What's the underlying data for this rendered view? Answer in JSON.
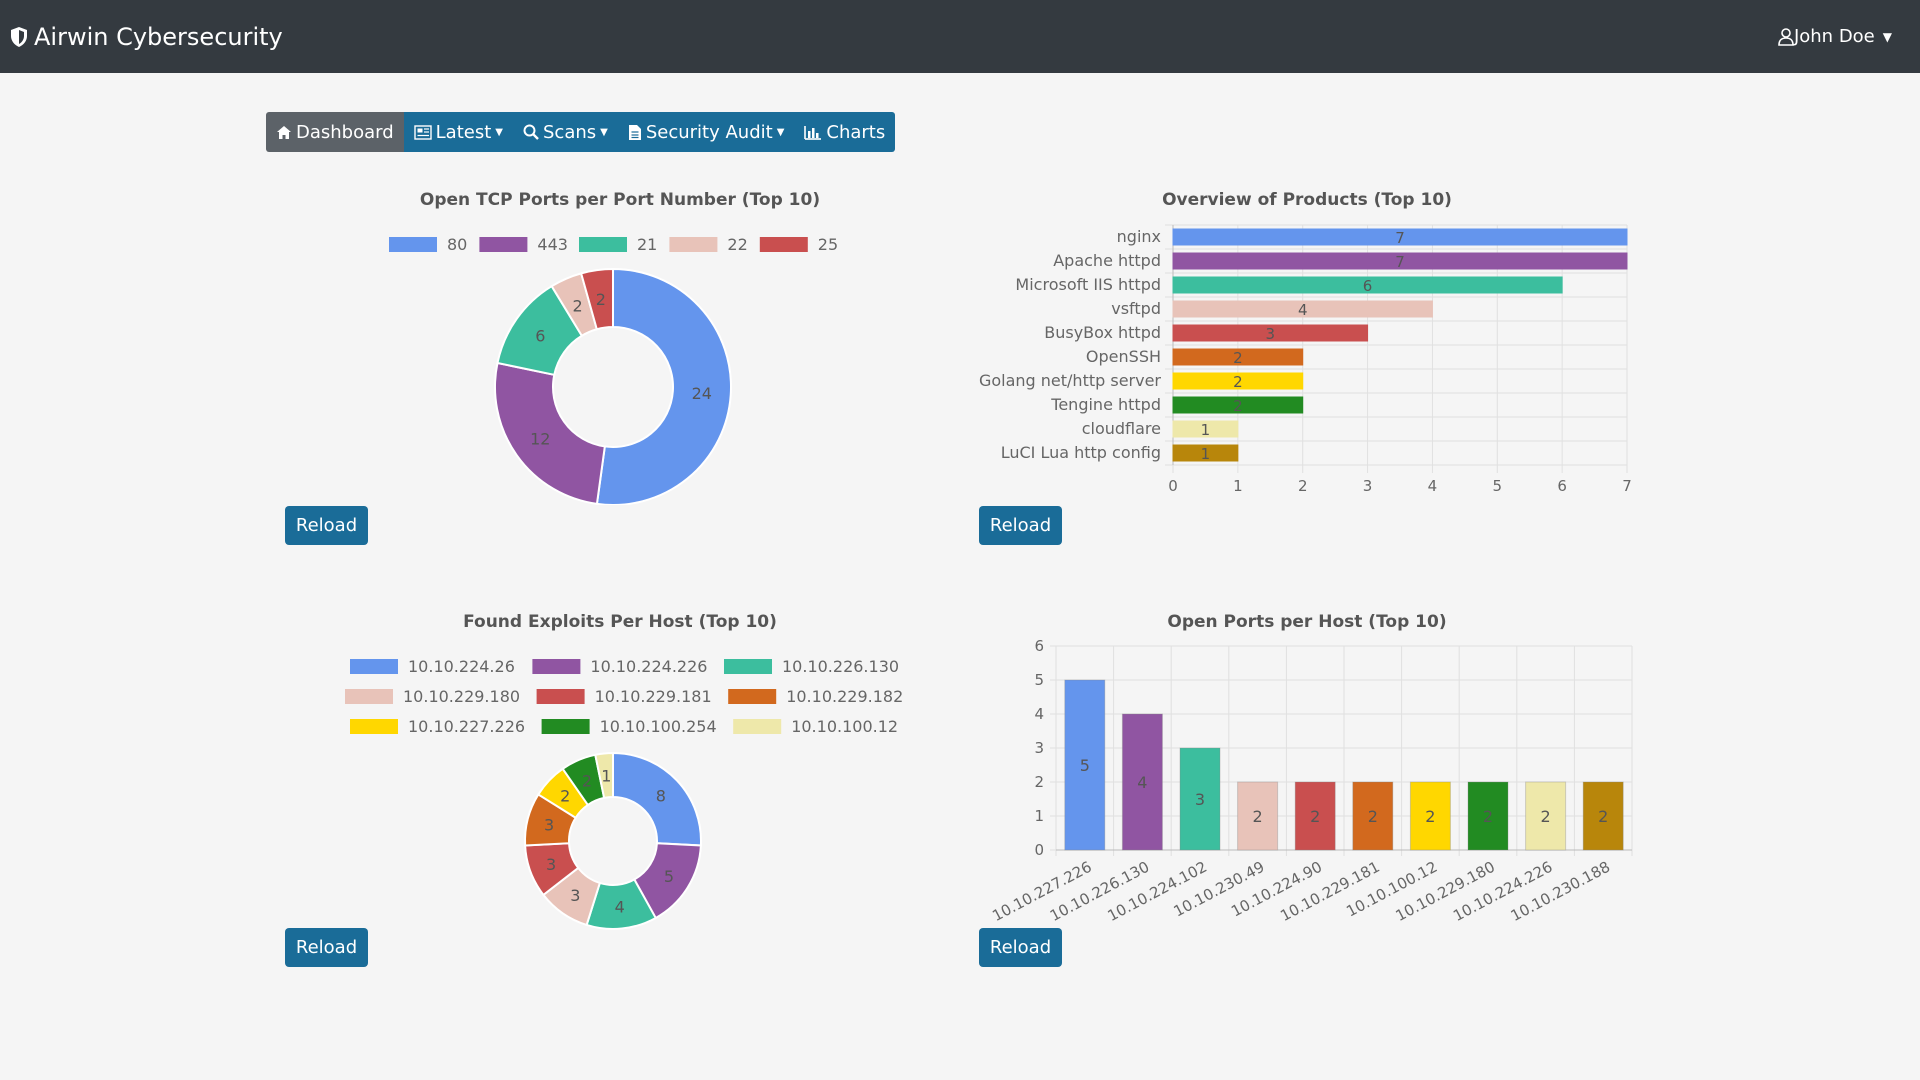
{
  "app": {
    "title": "Airwin Cybersecurity",
    "user": "John Doe"
  },
  "nav": [
    {
      "label": "Dashboard",
      "icon": "home-icon",
      "active": true,
      "caret": false
    },
    {
      "label": "Latest",
      "icon": "newspaper-icon",
      "active": false,
      "caret": true
    },
    {
      "label": "Scans",
      "icon": "search-icon",
      "active": false,
      "caret": true
    },
    {
      "label": "Security Audit",
      "icon": "document-icon",
      "active": false,
      "caret": true
    },
    {
      "label": "Charts",
      "icon": "bar-chart-icon",
      "active": false,
      "caret": false
    }
  ],
  "buttons": {
    "reload": "Reload"
  },
  "chart_data": [
    {
      "id": "tcp-ports",
      "type": "pie",
      "title": "Open TCP Ports per Port Number (Top 10)",
      "legend": "top",
      "categories": [
        "80",
        "443",
        "21",
        "22",
        "25"
      ],
      "values": [
        24,
        12,
        6,
        2,
        2
      ],
      "colors": [
        "#6495ed",
        "#9055a2",
        "#3cbe9e",
        "#e8c3b9",
        "#c94f4f"
      ]
    },
    {
      "id": "products",
      "type": "bar",
      "orientation": "horizontal",
      "title": "Overview of Products (Top 10)",
      "categories": [
        "nginx",
        "Apache httpd",
        "Microsoft IIS httpd",
        "vsftpd",
        "BusyBox httpd",
        "OpenSSH",
        "Golang net/http server",
        "Tengine httpd",
        "cloudflare",
        "LuCI Lua http config"
      ],
      "values": [
        7,
        7,
        6,
        4,
        3,
        2,
        2,
        2,
        1,
        1
      ],
      "xlim": [
        0,
        7
      ],
      "grid": true,
      "colors": [
        "#6495ed",
        "#9055a2",
        "#3cbe9e",
        "#e8c3b9",
        "#c94f4f",
        "#d2691e",
        "#ffd700",
        "#228b22",
        "#eee8aa",
        "#b8860b"
      ]
    },
    {
      "id": "exploits",
      "type": "pie",
      "title": "Found Exploits Per Host (Top 10)",
      "legend": "top",
      "categories": [
        "10.10.224.26",
        "10.10.224.226",
        "10.10.226.130",
        "10.10.229.180",
        "10.10.229.181",
        "10.10.229.182",
        "10.10.227.226",
        "10.10.100.254",
        "10.10.100.12"
      ],
      "values": [
        8,
        5,
        4,
        3,
        3,
        3,
        2,
        2,
        1
      ],
      "colors": [
        "#6495ed",
        "#9055a2",
        "#3cbe9e",
        "#e8c3b9",
        "#c94f4f",
        "#d2691e",
        "#ffd700",
        "#228b22",
        "#eee8aa"
      ]
    },
    {
      "id": "ports-host",
      "type": "bar",
      "title": "Open Ports per Host (Top 10)",
      "categories": [
        "10.10.227.226",
        "10.10.226.130",
        "10.10.224.102",
        "10.10.230.49",
        "10.10.224.90",
        "10.10.229.181",
        "10.10.100.12",
        "10.10.229.180",
        "10.10.224.226",
        "10.10.230.188"
      ],
      "values": [
        5,
        4,
        3,
        2,
        2,
        2,
        2,
        2,
        2,
        2
      ],
      "ylim": [
        0,
        6
      ],
      "grid": true,
      "colors": [
        "#6495ed",
        "#9055a2",
        "#3cbe9e",
        "#e8c3b9",
        "#c94f4f",
        "#d2691e",
        "#ffd700",
        "#228b22",
        "#eee8aa",
        "#b8860b"
      ]
    }
  ]
}
